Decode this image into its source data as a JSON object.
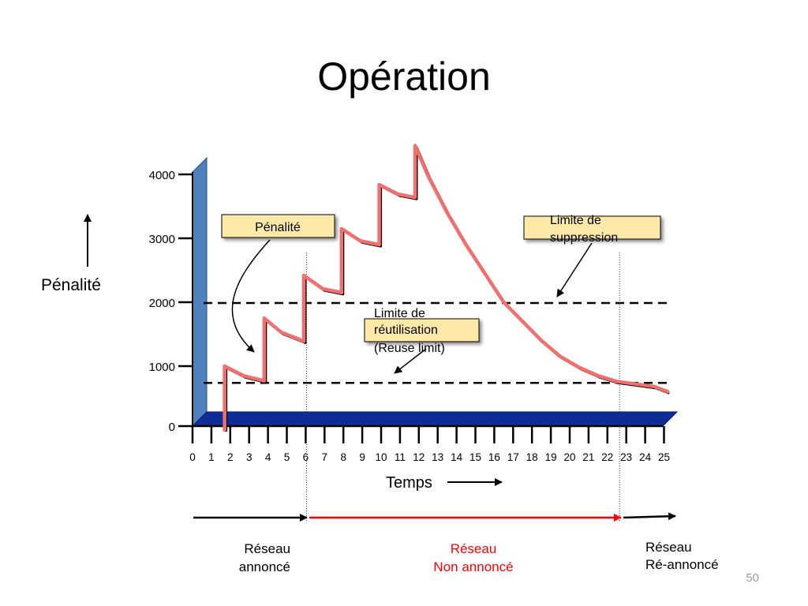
{
  "slide": {
    "title": "Opération",
    "number": "50"
  },
  "colors": {
    "penalty_curve": "#f07070",
    "timeline_unannounced": "#ff0000",
    "note_fill": "#ffe9a8",
    "wall_fill": "#4f81bd",
    "floor_fill": "#0f2c99"
  },
  "chart_data": {
    "type": "line",
    "ylabel": "Pénalité",
    "ylabel_arrow": "arrow-up",
    "xlabel": "Temps",
    "xlabel_arrow": "arrow-right",
    "ylim": [
      0,
      4000
    ],
    "xlim": [
      0,
      25
    ],
    "y_ticks": [
      "0",
      "1000",
      "2000",
      "3000",
      "4000"
    ],
    "x_ticks": [
      "0",
      "1",
      "2",
      "3",
      "4",
      "5",
      "6",
      "7",
      "8",
      "9",
      "10",
      "11",
      "12",
      "13",
      "14",
      "15",
      "16",
      "17",
      "18",
      "19",
      "20",
      "21",
      "22",
      "23",
      "24",
      "25"
    ],
    "grid": false,
    "series": [
      {
        "x": [
          1.7,
          1.7,
          2.7,
          3.8,
          3.8,
          4.7,
          5.9,
          5.9,
          6.9,
          7.9,
          7.9,
          8.9,
          9.9,
          9.9,
          10.9,
          11.8,
          11.8,
          12.5,
          13.5,
          14.5,
          15.5,
          16.5,
          17.5,
          18.5,
          19.5,
          20.5,
          21.5,
          22.5,
          23.5,
          24.5,
          25.2
        ],
        "y": [
          0,
          1000,
          850,
          770,
          1750,
          1530,
          1390,
          2420,
          2210,
          2150,
          3150,
          2960,
          2900,
          3840,
          3690,
          3640,
          4450,
          3970,
          3400,
          2900,
          2450,
          2000,
          1700,
          1400,
          1150,
          980,
          850,
          760,
          720,
          680,
          600
        ]
      }
    ],
    "reference_lines": [
      {
        "y": 2000,
        "style": "dashed"
      },
      {
        "y": 750,
        "style": "dashed"
      }
    ],
    "markers": [
      {
        "x": 6,
        "style": "dotted"
      },
      {
        "x": 22.6,
        "style": "dotted"
      }
    ],
    "callouts": {
      "penalty": "Pénalité",
      "suppress_limit": [
        "Limite de",
        "suppression"
      ],
      "reuse_limit": [
        "Limite de",
        "réutilisation",
        "(Reuse limit)"
      ]
    },
    "timeline": {
      "segments": [
        {
          "from": 0,
          "to": 6,
          "label": [
            "Réseau",
            "annoncé"
          ],
          "color": "#000000"
        },
        {
          "from": 6,
          "to": 22.6,
          "label": [
            "Réseau",
            "Non annoncé"
          ],
          "color": "#ff0000"
        },
        {
          "from": 22.6,
          "to": 25.5,
          "label": [
            "Réseau",
            "Ré-annoncé"
          ],
          "color": "#000000"
        }
      ]
    }
  }
}
